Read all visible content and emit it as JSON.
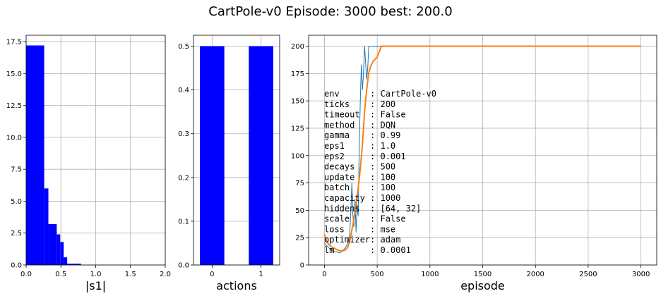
{
  "title": "CartPole-v0  Episode: 3000  best:   200.0",
  "colors": {
    "bar": "#0000ff",
    "raw_line": "#1f77b4",
    "smooth_line": "#ff7f0e",
    "grid": "#b0b0b0"
  },
  "chart_data": [
    {
      "type": "bar",
      "xlabel": "|s1|",
      "ylabel": "",
      "xlim": [
        0,
        2.0
      ],
      "ylim": [
        0,
        18
      ],
      "grid": true,
      "xticks": [
        0,
        0.5,
        1.0,
        1.5,
        2.0
      ],
      "xtick_labels": [
        "0.0",
        "0.5",
        "1.0",
        "1.5",
        "2.0"
      ],
      "yticks": [
        0,
        2.5,
        5.0,
        7.5,
        10.0,
        12.5,
        15.0,
        17.5
      ],
      "ytick_labels": [
        "0.0",
        "2.5",
        "5.0",
        "7.5",
        "10.0",
        "12.5",
        "15.0",
        "17.5"
      ],
      "bin_edges": [
        0.0,
        0.26,
        0.32,
        0.44,
        0.49,
        0.54,
        0.59,
        0.79
      ],
      "values": [
        17.2,
        6.0,
        3.2,
        2.4,
        1.8,
        0.6,
        0.1
      ]
    },
    {
      "type": "bar",
      "xlabel": "actions",
      "ylabel": "",
      "xlim": [
        -0.38,
        1.38
      ],
      "ylim": [
        0,
        0.525
      ],
      "grid": true,
      "xticks": [
        0,
        1
      ],
      "xtick_labels": [
        "0",
        "1"
      ],
      "yticks": [
        0,
        0.1,
        0.2,
        0.3,
        0.4,
        0.5
      ],
      "ytick_labels": [
        "0.0",
        "0.1",
        "0.2",
        "0.3",
        "0.4",
        "0.5"
      ],
      "categories": [
        0,
        1
      ],
      "bar_width": 0.5,
      "values": [
        0.5,
        0.5
      ]
    },
    {
      "type": "line",
      "xlabel": "episode",
      "ylabel": "",
      "xlim": [
        -150,
        3150
      ],
      "ylim": [
        0,
        210
      ],
      "grid": true,
      "xticks": [
        0,
        500,
        1000,
        1500,
        2000,
        2500,
        3000
      ],
      "xtick_labels": [
        "0",
        "500",
        "1000",
        "1500",
        "2000",
        "2500",
        "3000"
      ],
      "yticks": [
        0,
        25,
        50,
        75,
        100,
        125,
        150,
        175,
        200
      ],
      "ytick_labels": [
        "0",
        "25",
        "50",
        "75",
        "100",
        "125",
        "150",
        "175",
        "200"
      ],
      "series": [
        {
          "x": [
            0,
            20,
            40,
            60,
            80,
            100,
            120,
            140,
            160,
            180,
            200,
            220,
            240,
            250,
            260,
            270,
            280,
            290,
            300,
            310,
            320,
            330,
            340,
            350,
            360,
            370,
            380,
            390,
            400,
            410,
            420,
            430,
            440,
            450,
            460,
            470,
            480,
            490,
            500,
            510,
            520,
            540,
            3000
          ],
          "y": [
            20,
            18,
            16,
            14,
            13,
            12,
            12,
            11,
            12,
            14,
            16,
            20,
            28,
            50,
            75,
            45,
            35,
            60,
            30,
            55,
            45,
            110,
            150,
            183,
            160,
            175,
            200,
            185,
            170,
            180,
            200,
            200,
            200,
            200,
            200,
            200,
            200,
            200,
            200,
            200,
            200,
            200,
            200
          ]
        },
        {
          "x": [
            0,
            20,
            40,
            60,
            80,
            100,
            120,
            140,
            160,
            180,
            200,
            220,
            240,
            260,
            280,
            300,
            320,
            340,
            360,
            380,
            400,
            420,
            440,
            460,
            480,
            500,
            520,
            540,
            560,
            600,
            3000
          ],
          "y": [
            28,
            22,
            19,
            17,
            16,
            15,
            14,
            13,
            13,
            13,
            14,
            16,
            22,
            32,
            42,
            55,
            70,
            88,
            110,
            140,
            160,
            176,
            182,
            186,
            188,
            190,
            195,
            200,
            200,
            200,
            200
          ]
        }
      ],
      "annotation": {
        "lines": [
          "env      : CartPole-v0",
          "ticks    : 200",
          "timeout  : False",
          "method   : DQN",
          "gamma    : 0.99",
          "eps1     : 1.0",
          "eps2     : 0.001",
          "decays   : 500",
          "update   : 100",
          "batch    : 100",
          "capacity : 1000",
          "hiddens  : [64, 32]",
          "scale    : False",
          "loss     : mse",
          "optimizer: adam",
          "lm       : 0.0001"
        ]
      }
    }
  ]
}
